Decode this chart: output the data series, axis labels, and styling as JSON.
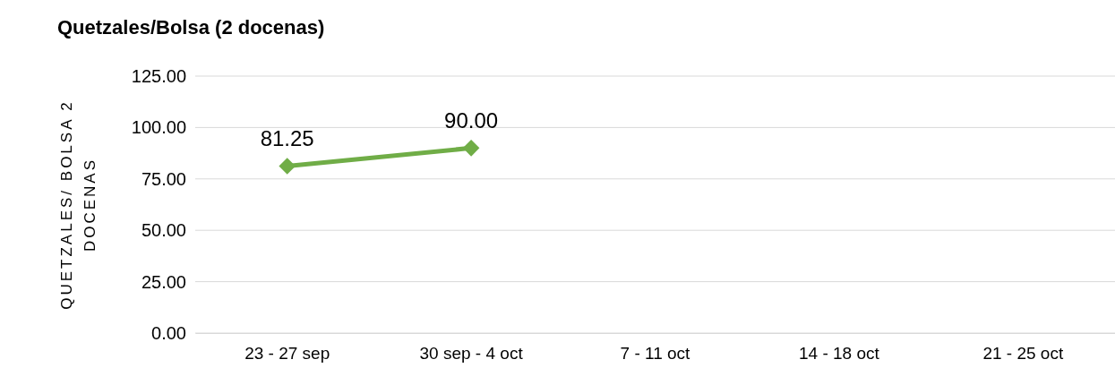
{
  "chart_data": {
    "type": "line",
    "title": "Quetzales/Bolsa (2 docenas)",
    "ylabel": "QUETZALES/ BOLSA 2 DOCENAS",
    "categories": [
      "23 - 27 sep",
      "30 sep - 4 oct",
      "7 - 11 oct",
      "14 - 18 oct",
      "21 - 25 oct"
    ],
    "series": [
      {
        "color": "#70ad47",
        "values": [
          81.25,
          90.0,
          null,
          null,
          null
        ],
        "value_labels": [
          "81.25",
          "90.00",
          null,
          null,
          null
        ]
      }
    ],
    "ylim": [
      0,
      125
    ],
    "yticks": [
      {
        "value": 0,
        "label": "0.00"
      },
      {
        "value": 25,
        "label": "25.00"
      },
      {
        "value": 50,
        "label": "50.00"
      },
      {
        "value": 75,
        "label": "75.00"
      },
      {
        "value": 100,
        "label": "100.00"
      },
      {
        "value": 125,
        "label": "125.00"
      }
    ],
    "grid": "y",
    "marker": "diamond",
    "line_style": "solid"
  }
}
